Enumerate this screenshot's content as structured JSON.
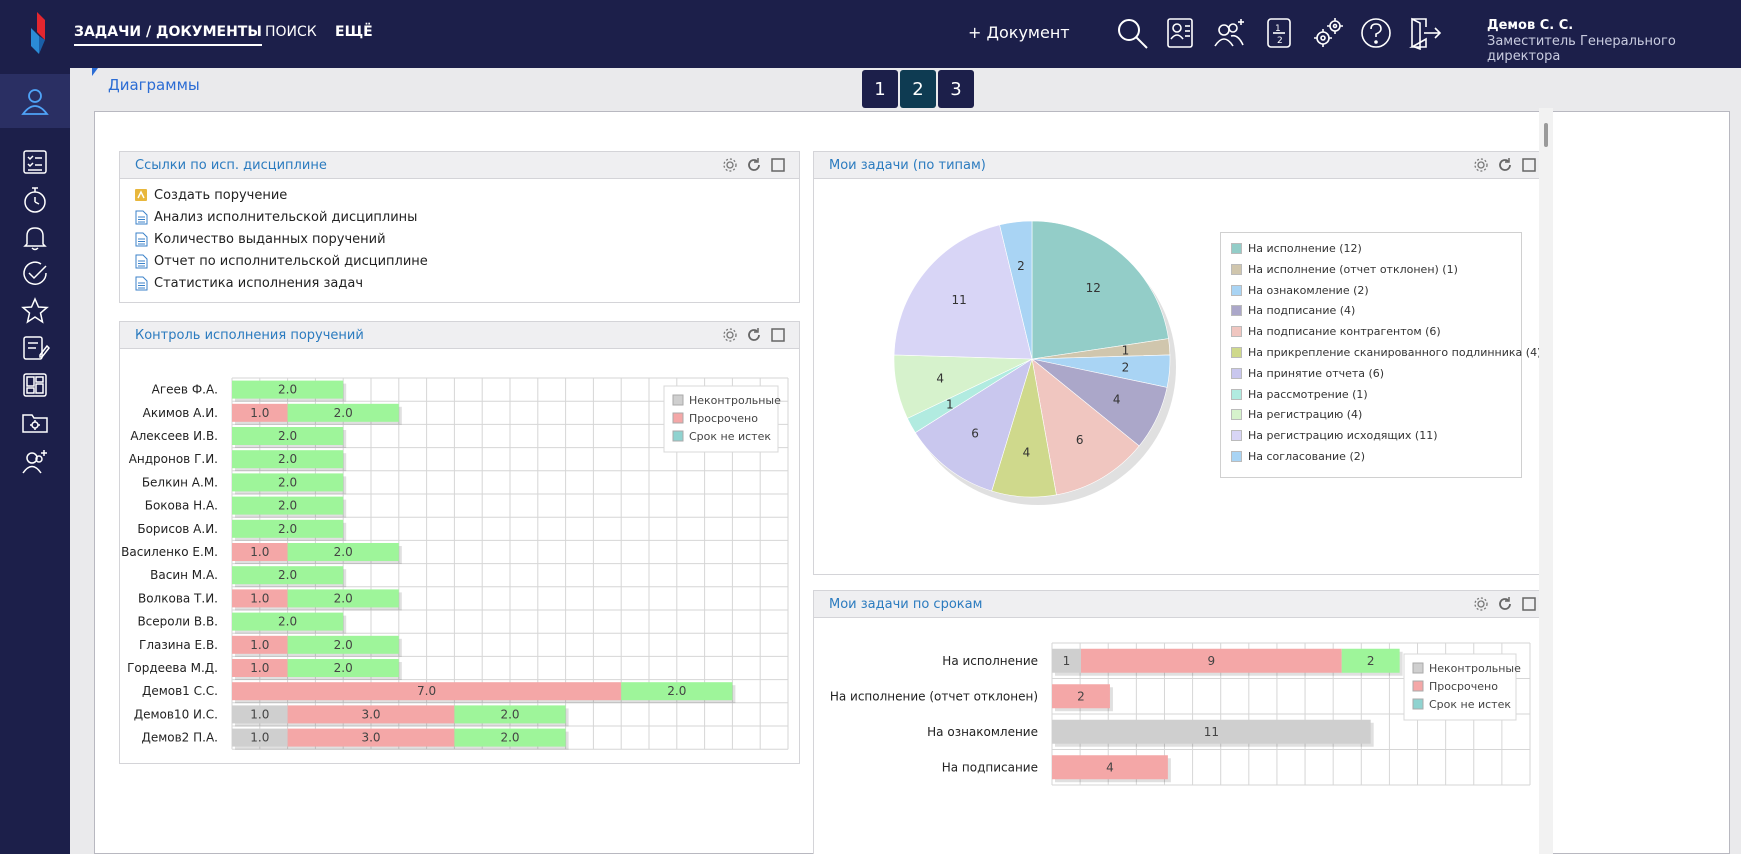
{
  "topbar": {
    "nav": [
      "ЗАДАЧИ / ДОКУМЕНТЫ",
      "ПОИСК",
      "ЕЩЁ"
    ],
    "new_document": "+ Документ",
    "user_name": "Демов С. С.",
    "user_role": "Заместитель Генерального директора"
  },
  "page": {
    "title": "Диаграммы",
    "pages": [
      "1",
      "2",
      "3"
    ],
    "current_page": "2"
  },
  "links_panel": {
    "title": "Ссылки по исп. дисциплине",
    "items": [
      {
        "label": "Создать поручение",
        "icon": "create-task-icon"
      },
      {
        "label": "Анализ исполнительской дисциплины",
        "icon": "document-icon"
      },
      {
        "label": "Количество выданных поручений",
        "icon": "document-icon"
      },
      {
        "label": "Отчет по исполнительской дисциплине",
        "icon": "document-icon"
      },
      {
        "label": "Статистика исполнения задач",
        "icon": "document-icon"
      }
    ]
  },
  "control_panel": {
    "title": "Контроль исполнения поручений",
    "chart_data": {
      "type": "bar",
      "orientation": "horizontal",
      "stacked": true,
      "categories": [
        "Агеев Ф.А.",
        "Акимов А.И.",
        "Алексеев И.В.",
        "Андронов Г.И.",
        "Белкин А.М.",
        "Бокова Н.А.",
        "Борисов А.И.",
        "Василенко Е.М.",
        "Васин М.А.",
        "Волкова Т.И.",
        "Всероли В.В.",
        "Глазина Е.В.",
        "Гордеева М.Д.",
        "Демов1 С.С.",
        "Демов10 И.С.",
        "Демов2 П.А."
      ],
      "series": [
        {
          "name": "Неконтрольные",
          "color": "#cfcfcf",
          "values": [
            0,
            0,
            0,
            0,
            0,
            0,
            0,
            0,
            0,
            0,
            0,
            0,
            0,
            0,
            1,
            1
          ],
          "labels": [
            "",
            "",
            "",
            "",
            "",
            "",
            "",
            "",
            "",
            "",
            "",
            "",
            "",
            "",
            "1.0",
            "1.0"
          ]
        },
        {
          "name": "Просрочено",
          "color": "#f4a7a7",
          "values": [
            0,
            1,
            0,
            0,
            0,
            0,
            0,
            1,
            0,
            1,
            0,
            1,
            1,
            7,
            3,
            3
          ],
          "labels": [
            "",
            "1.0",
            "",
            "",
            "",
            "",
            "",
            "1.0",
            "",
            "1.0",
            "",
            "1.0",
            "1.0",
            "7.0",
            "3.0",
            "3.0"
          ]
        },
        {
          "name": "Срок не истек",
          "color": "#9ef59a",
          "values": [
            2,
            2,
            2,
            2,
            2,
            2,
            2,
            2,
            2,
            2,
            2,
            2,
            2,
            2,
            2,
            2
          ],
          "labels": [
            "2.0",
            "2.0",
            "2.0",
            "2.0",
            "2.0",
            "2.0",
            "2.0",
            "2.0",
            "2.0",
            "2.0",
            "2.0",
            "2.0",
            "2.0",
            "2.0",
            "2.0",
            "2.0"
          ]
        }
      ],
      "legend": [
        {
          "label": "Неконтрольные",
          "color": "#cfcfcf"
        },
        {
          "label": "Просрочено",
          "color": "#f4a7a7"
        },
        {
          "label": "Срок не истек",
          "color": "#8fd3d0"
        }
      ],
      "xlim": [
        0,
        10
      ],
      "grid": true,
      "legend_position": "top-right"
    }
  },
  "types_panel": {
    "title": "Мои задачи (по типам)",
    "chart_data": {
      "type": "pie",
      "slices": [
        {
          "label": "На исполнение",
          "value": 12,
          "color": "#93cdc8",
          "legend": "На исполнение (12)"
        },
        {
          "label": "На исполнение (отчет отклонен)",
          "value": 1,
          "color": "#d0c6ad",
          "legend": "На исполнение (отчет отклонен) (1)"
        },
        {
          "label": "На ознакомление",
          "value": 2,
          "color": "#a9d4f4",
          "legend": "На ознакомление (2)"
        },
        {
          "label": "На подписание",
          "value": 4,
          "color": "#aba7c9",
          "legend": "На подписание (4)"
        },
        {
          "label": "На подписание контрагентом",
          "value": 6,
          "color": "#f0c6c0",
          "legend": "На подписание контрагентом (6)"
        },
        {
          "label": "На прикрепление сканированного подлинника",
          "value": 4,
          "color": "#cfd98c",
          "legend": "На прикрепление сканированного подлинника (4)"
        },
        {
          "label": "На принятие отчета",
          "value": 6,
          "color": "#c9c7ee",
          "legend": "На принятие отчета (6)"
        },
        {
          "label": "На рассмотрение",
          "value": 1,
          "color": "#b1ebe0",
          "legend": "На рассмотрение (1)"
        },
        {
          "label": "На регистрацию",
          "value": 4,
          "color": "#d6f2cc",
          "legend": "На регистрацию (4)"
        },
        {
          "label": "На регистрацию исходящих",
          "value": 11,
          "color": "#d8d5f6",
          "legend": "На регистрацию исходящих (11)"
        },
        {
          "label": "На согласование",
          "value": 2,
          "color": "#a9d4f4",
          "legend": "На согласование (2)"
        }
      ],
      "legend_position": "right"
    }
  },
  "deadlines_panel": {
    "title": "Мои задачи по срокам",
    "chart_data": {
      "type": "bar",
      "orientation": "horizontal",
      "stacked": true,
      "categories": [
        "На исполнение",
        "На исполнение (отчет отклонен)",
        "На ознакомление",
        "На подписание"
      ],
      "series": [
        {
          "name": "Неконтрольные",
          "color": "#cfcfcf",
          "values": [
            1,
            0,
            11,
            0
          ],
          "labels": [
            "1",
            "",
            "11",
            ""
          ]
        },
        {
          "name": "Просрочено",
          "color": "#f4a7a7",
          "values": [
            9,
            2,
            0,
            4
          ],
          "labels": [
            "9",
            "2",
            "",
            "4"
          ]
        },
        {
          "name": "Срок не истек",
          "color": "#9ef59a",
          "values": [
            2,
            0,
            0,
            0
          ],
          "labels": [
            "2",
            "",
            "",
            ""
          ]
        }
      ],
      "legend": [
        {
          "label": "Неконтрольные",
          "color": "#cfcfcf"
        },
        {
          "label": "Просрочено",
          "color": "#f4a7a7"
        },
        {
          "label": "Срок не истек",
          "color": "#8fd3d0"
        }
      ],
      "xlim": [
        0,
        16.5
      ],
      "grid": true,
      "legend_position": "top-right"
    }
  },
  "colors": {
    "brand_dark": "#1c1f4a",
    "accent_blue": "#2b6cd4",
    "logo_red": "#e3262f"
  }
}
